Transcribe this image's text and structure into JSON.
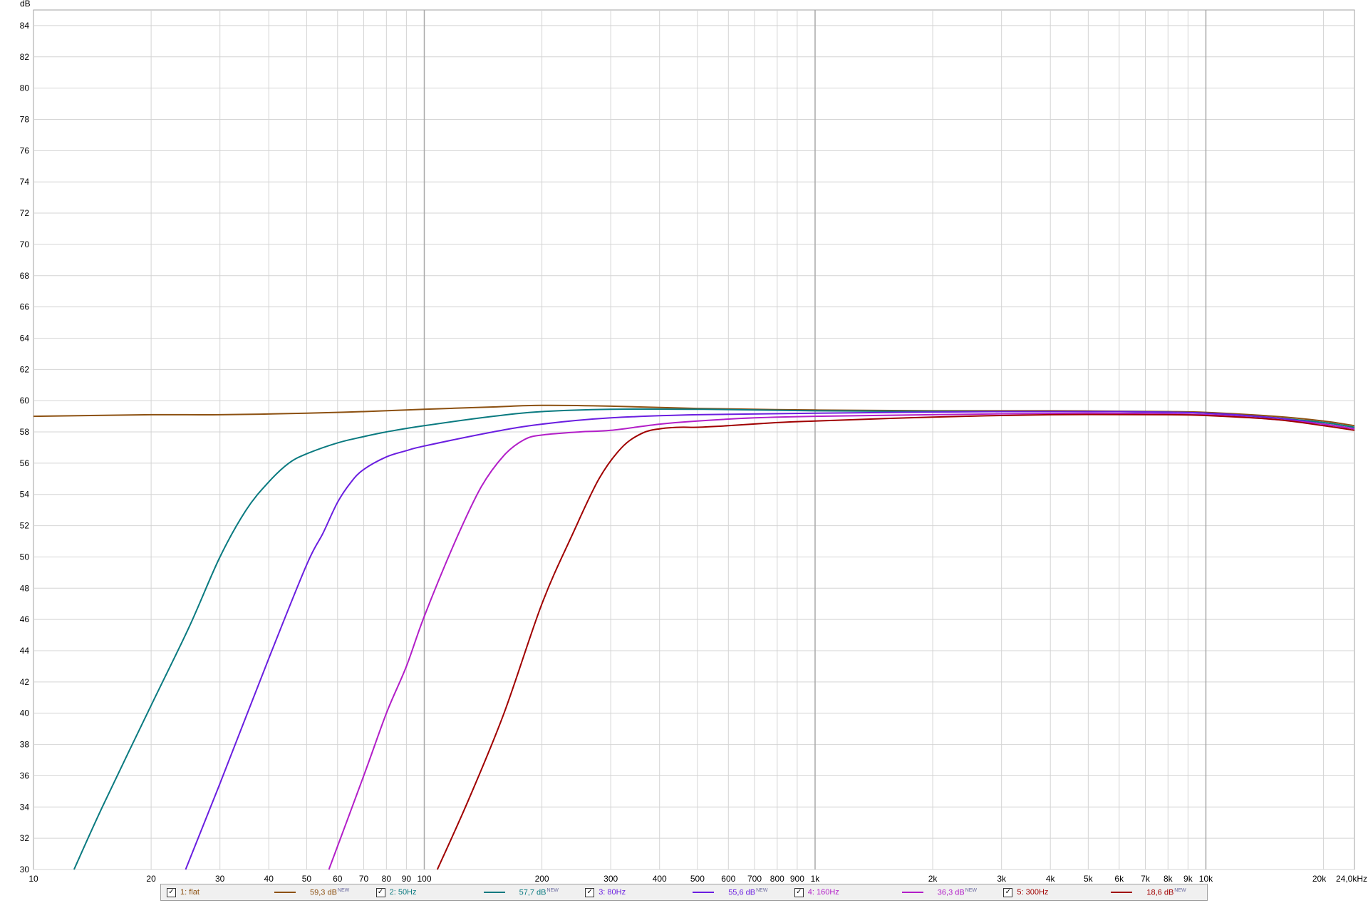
{
  "chart_data": {
    "type": "line",
    "title": "",
    "xlabel": "",
    "ylabel": "dB",
    "x_scale": "log",
    "x_range": [
      10,
      24000
    ],
    "ylim": [
      30,
      85
    ],
    "grid": true,
    "x_ticks": [
      {
        "v": 10,
        "label": "10"
      },
      {
        "v": 20,
        "label": "20"
      },
      {
        "v": 30,
        "label": "30"
      },
      {
        "v": 40,
        "label": "40"
      },
      {
        "v": 50,
        "label": "50"
      },
      {
        "v": 60,
        "label": "60"
      },
      {
        "v": 70,
        "label": "70"
      },
      {
        "v": 80,
        "label": "80"
      },
      {
        "v": 90,
        "label": "90"
      },
      {
        "v": 100,
        "label": "100"
      },
      {
        "v": 200,
        "label": "200"
      },
      {
        "v": 300,
        "label": "300"
      },
      {
        "v": 400,
        "label": "400"
      },
      {
        "v": 500,
        "label": "500"
      },
      {
        "v": 600,
        "label": "600"
      },
      {
        "v": 700,
        "label": "700"
      },
      {
        "v": 800,
        "label": "800"
      },
      {
        "v": 900,
        "label": "900"
      },
      {
        "v": 1000,
        "label": "1k"
      },
      {
        "v": 2000,
        "label": "2k"
      },
      {
        "v": 3000,
        "label": "3k"
      },
      {
        "v": 4000,
        "label": "4k"
      },
      {
        "v": 5000,
        "label": "5k"
      },
      {
        "v": 6000,
        "label": "6k"
      },
      {
        "v": 7000,
        "label": "7k"
      },
      {
        "v": 8000,
        "label": "8k"
      },
      {
        "v": 9000,
        "label": "9k"
      },
      {
        "v": 10000,
        "label": "10k"
      },
      {
        "v": 20000,
        "label": "20k"
      },
      {
        "v": 24000,
        "label": "24,0kHz"
      }
    ],
    "y_ticks": [
      30,
      32,
      34,
      36,
      38,
      40,
      42,
      44,
      46,
      48,
      50,
      52,
      54,
      56,
      58,
      60,
      62,
      64,
      66,
      68,
      70,
      72,
      74,
      76,
      78,
      80,
      82,
      84
    ],
    "series": [
      {
        "name": "1: flat",
        "color": "#8c5010",
        "legend_value": "59,3 dB",
        "badge": "NEW",
        "points": [
          [
            10,
            59.0
          ],
          [
            20,
            59.1
          ],
          [
            30,
            59.1
          ],
          [
            50,
            59.2
          ],
          [
            70,
            59.3
          ],
          [
            100,
            59.45
          ],
          [
            150,
            59.6
          ],
          [
            200,
            59.7
          ],
          [
            300,
            59.65
          ],
          [
            500,
            59.5
          ],
          [
            1000,
            59.4
          ],
          [
            2000,
            59.35
          ],
          [
            4000,
            59.35
          ],
          [
            8000,
            59.3
          ],
          [
            10000,
            59.25
          ],
          [
            15000,
            59.0
          ],
          [
            20000,
            58.7
          ],
          [
            24000,
            58.4
          ]
        ]
      },
      {
        "name": "2: 50Hz",
        "color": "#0a7a80",
        "legend_value": "57,7 dB",
        "badge": "NEW",
        "points": [
          [
            12.7,
            30
          ],
          [
            15,
            34
          ],
          [
            20,
            40.5
          ],
          [
            25,
            45.5
          ],
          [
            30,
            50
          ],
          [
            35,
            53
          ],
          [
            40,
            54.8
          ],
          [
            45,
            56
          ],
          [
            50,
            56.6
          ],
          [
            60,
            57.3
          ],
          [
            70,
            57.7
          ],
          [
            80,
            58.0
          ],
          [
            100,
            58.4
          ],
          [
            150,
            59.0
          ],
          [
            200,
            59.3
          ],
          [
            300,
            59.45
          ],
          [
            500,
            59.45
          ],
          [
            1000,
            59.35
          ],
          [
            3000,
            59.3
          ],
          [
            6000,
            59.3
          ],
          [
            10000,
            59.2
          ],
          [
            15000,
            58.9
          ],
          [
            20000,
            58.6
          ],
          [
            24000,
            58.3
          ]
        ]
      },
      {
        "name": "3: 80Hz",
        "color": "#6a1ee0",
        "legend_value": "55,6 dB",
        "badge": "NEW",
        "points": [
          [
            24.5,
            30
          ],
          [
            30,
            35.5
          ],
          [
            40,
            43.5
          ],
          [
            50,
            49.5
          ],
          [
            55,
            51.5
          ],
          [
            60,
            53.5
          ],
          [
            65,
            54.8
          ],
          [
            70,
            55.6
          ],
          [
            80,
            56.4
          ],
          [
            90,
            56.8
          ],
          [
            100,
            57.1
          ],
          [
            150,
            58.0
          ],
          [
            200,
            58.5
          ],
          [
            300,
            58.9
          ],
          [
            500,
            59.1
          ],
          [
            1000,
            59.2
          ],
          [
            3000,
            59.3
          ],
          [
            6000,
            59.3
          ],
          [
            10000,
            59.2
          ],
          [
            15000,
            58.9
          ],
          [
            20000,
            58.5
          ],
          [
            24000,
            58.2
          ]
        ]
      },
      {
        "name": "4: 160Hz",
        "color": "#b21ec8",
        "legend_value": "36,3 dB",
        "badge": "NEW",
        "points": [
          [
            57,
            30
          ],
          [
            70,
            36
          ],
          [
            80,
            40
          ],
          [
            90,
            43
          ],
          [
            100,
            46.2
          ],
          [
            120,
            51
          ],
          [
            140,
            54.5
          ],
          [
            160,
            56.5
          ],
          [
            180,
            57.5
          ],
          [
            200,
            57.8
          ],
          [
            250,
            58.0
          ],
          [
            300,
            58.1
          ],
          [
            400,
            58.5
          ],
          [
            500,
            58.7
          ],
          [
            700,
            58.9
          ],
          [
            1000,
            59.0
          ],
          [
            2000,
            59.1
          ],
          [
            5000,
            59.2
          ],
          [
            10000,
            59.1
          ],
          [
            15000,
            58.8
          ],
          [
            20000,
            58.5
          ],
          [
            24000,
            58.2
          ]
        ]
      },
      {
        "name": "5: 300Hz",
        "color": "#a00000",
        "legend_value": "18,6 dB",
        "badge": "NEW",
        "points": [
          [
            108,
            30
          ],
          [
            130,
            34.5
          ],
          [
            160,
            40
          ],
          [
            200,
            47
          ],
          [
            240,
            51.5
          ],
          [
            280,
            55
          ],
          [
            320,
            57
          ],
          [
            360,
            57.9
          ],
          [
            400,
            58.2
          ],
          [
            450,
            58.3
          ],
          [
            500,
            58.3
          ],
          [
            600,
            58.4
          ],
          [
            800,
            58.6
          ],
          [
            1000,
            58.7
          ],
          [
            2000,
            58.95
          ],
          [
            4000,
            59.1
          ],
          [
            8000,
            59.1
          ],
          [
            10000,
            59.05
          ],
          [
            15000,
            58.8
          ],
          [
            20000,
            58.4
          ],
          [
            24000,
            58.1
          ]
        ]
      }
    ]
  }
}
